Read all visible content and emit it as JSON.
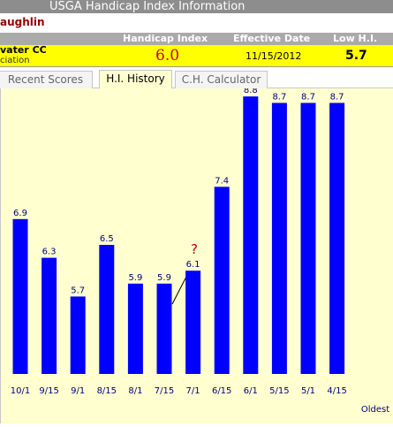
{
  "window": {
    "title": "USGA Handicap Index Information"
  },
  "player": {
    "name": "aughlin"
  },
  "header": {
    "handicap_index_label": "Handicap Index",
    "effective_date_label": "Effective Date",
    "low_hi_label": "Low H.I."
  },
  "info": {
    "club_name": "vater CC",
    "club_sub": "ciation",
    "handicap_index": "6.0",
    "effective_date": "11/15/2012",
    "low_hi": "5.7"
  },
  "tabs": [
    {
      "label": "Recent Scores",
      "active": false
    },
    {
      "label": "H.I. History",
      "active": true
    },
    {
      "label": "C.H. Calculator",
      "active": false
    }
  ],
  "annotation": {
    "question_mark": "?"
  },
  "colors": {
    "bar": "#0000ff",
    "panel_bg": "#ffffd0",
    "info_bg": "#ffff00",
    "header_bg": "#aaaaaa"
  },
  "chart_data": {
    "type": "bar",
    "categories": [
      "10/1",
      "9/15",
      "9/1",
      "8/15",
      "8/1",
      "7/15",
      "7/1",
      "6/15",
      "6/1",
      "5/15",
      "5/1",
      "4/15"
    ],
    "values": [
      6.9,
      6.3,
      5.7,
      6.5,
      5.9,
      5.9,
      6.1,
      7.4,
      8.8,
      8.7,
      8.7,
      8.7
    ],
    "value_labels": [
      "6.9",
      "6.3",
      "5.7",
      "6.5",
      "5.9",
      "5.9",
      "6.1",
      "7.4",
      "8.8",
      "8.7",
      "8.7",
      "8.7"
    ],
    "end_label": "Oldest",
    "baseline": 4.5,
    "grid": false,
    "legend": "none"
  }
}
